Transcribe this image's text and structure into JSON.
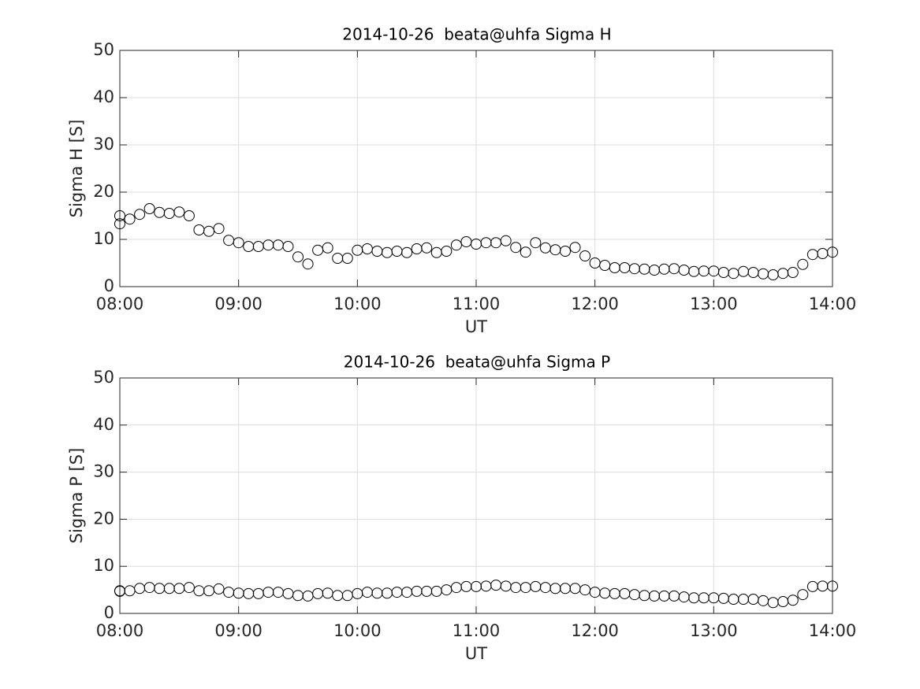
{
  "chart_data": [
    {
      "type": "line",
      "title": "2014-10-26  beata@uhfa Sigma H",
      "xlabel": "UT",
      "ylabel": "Sigma H [S]",
      "x": [
        "08:00",
        "08:00",
        "08:05",
        "08:10",
        "08:15",
        "08:20",
        "08:25",
        "08:30",
        "08:35",
        "08:40",
        "08:45",
        "08:50",
        "08:55",
        "09:00",
        "09:05",
        "09:10",
        "09:15",
        "09:20",
        "09:25",
        "09:30",
        "09:35",
        "09:40",
        "09:45",
        "09:50",
        "09:55",
        "10:00",
        "10:05",
        "10:10",
        "10:15",
        "10:20",
        "10:25",
        "10:30",
        "10:35",
        "10:40",
        "10:45",
        "10:50",
        "10:55",
        "11:00",
        "11:05",
        "11:10",
        "11:15",
        "11:20",
        "11:25",
        "11:30",
        "11:35",
        "11:40",
        "11:45",
        "11:50",
        "11:55",
        "12:00",
        "12:05",
        "12:10",
        "12:15",
        "12:20",
        "12:25",
        "12:30",
        "12:35",
        "12:40",
        "12:45",
        "12:50",
        "12:55",
        "13:00",
        "13:05",
        "13:10",
        "13:15",
        "13:20",
        "13:25",
        "13:30",
        "13:35",
        "13:40",
        "13:45",
        "13:50",
        "13:55",
        "14:00"
      ],
      "values": [
        15.0,
        13.3,
        14.3,
        15.3,
        16.5,
        15.7,
        15.5,
        15.8,
        15.0,
        12.0,
        11.7,
        12.3,
        9.8,
        9.3,
        8.5,
        8.5,
        8.8,
        8.8,
        8.5,
        6.3,
        4.8,
        7.7,
        8.2,
        6.0,
        6.0,
        7.7,
        8.0,
        7.5,
        7.2,
        7.5,
        7.2,
        8.0,
        8.2,
        7.2,
        7.5,
        8.8,
        9.5,
        9.0,
        9.3,
        9.3,
        9.7,
        8.3,
        7.3,
        9.3,
        8.2,
        7.8,
        7.5,
        8.3,
        6.5,
        5.0,
        4.5,
        4.0,
        4.0,
        3.8,
        3.7,
        3.5,
        3.7,
        3.8,
        3.5,
        3.2,
        3.3,
        3.3,
        3.0,
        2.8,
        3.2,
        3.0,
        2.7,
        2.5,
        2.8,
        3.0,
        4.7,
        6.8,
        7.0,
        7.3
      ],
      "color": "#000000",
      "marker": "circle",
      "xlim": [
        "08:00",
        "14:00"
      ],
      "xticks": [
        "08:00",
        "09:00",
        "10:00",
        "11:00",
        "12:00",
        "13:00",
        "14:00"
      ],
      "ylim": [
        0,
        50
      ],
      "yticks": [
        0,
        10,
        20,
        30,
        40,
        50
      ],
      "grid": true
    },
    {
      "type": "line",
      "title": "2014-10-26  beata@uhfa Sigma P",
      "xlabel": "UT",
      "ylabel": "Sigma P [S]",
      "x": [
        "08:00",
        "08:00",
        "08:05",
        "08:10",
        "08:15",
        "08:20",
        "08:25",
        "08:30",
        "08:35",
        "08:40",
        "08:45",
        "08:50",
        "08:55",
        "09:00",
        "09:05",
        "09:10",
        "09:15",
        "09:20",
        "09:25",
        "09:30",
        "09:35",
        "09:40",
        "09:45",
        "09:50",
        "09:55",
        "10:00",
        "10:05",
        "10:10",
        "10:15",
        "10:20",
        "10:25",
        "10:30",
        "10:35",
        "10:40",
        "10:45",
        "10:50",
        "10:55",
        "11:00",
        "11:05",
        "11:10",
        "11:15",
        "11:20",
        "11:25",
        "11:30",
        "11:35",
        "11:40",
        "11:45",
        "11:50",
        "11:55",
        "12:00",
        "12:05",
        "12:10",
        "12:15",
        "12:20",
        "12:25",
        "12:30",
        "12:35",
        "12:40",
        "12:45",
        "12:50",
        "12:55",
        "13:00",
        "13:05",
        "13:10",
        "13:15",
        "13:20",
        "13:25",
        "13:30",
        "13:35",
        "13:40",
        "13:45",
        "13:50",
        "13:55",
        "14:00"
      ],
      "values": [
        4.7,
        4.8,
        4.8,
        5.3,
        5.5,
        5.3,
        5.3,
        5.3,
        5.5,
        4.8,
        4.8,
        5.2,
        4.5,
        4.3,
        4.2,
        4.2,
        4.5,
        4.5,
        4.2,
        3.8,
        3.7,
        4.2,
        4.3,
        3.8,
        3.8,
        4.2,
        4.5,
        4.3,
        4.3,
        4.5,
        4.5,
        4.7,
        4.7,
        4.7,
        5.0,
        5.5,
        5.7,
        5.7,
        5.8,
        6.0,
        5.8,
        5.5,
        5.5,
        5.7,
        5.5,
        5.3,
        5.3,
        5.3,
        5.0,
        4.5,
        4.3,
        4.2,
        4.2,
        4.0,
        3.8,
        3.7,
        3.7,
        3.7,
        3.5,
        3.3,
        3.3,
        3.3,
        3.2,
        3.0,
        3.0,
        3.0,
        2.7,
        2.3,
        2.5,
        2.8,
        4.0,
        5.7,
        5.8,
        5.8
      ],
      "color": "#000000",
      "marker": "circle",
      "xlim": [
        "08:00",
        "14:00"
      ],
      "xticks": [
        "08:00",
        "09:00",
        "10:00",
        "11:00",
        "12:00",
        "13:00",
        "14:00"
      ],
      "ylim": [
        0,
        50
      ],
      "yticks": [
        0,
        10,
        20,
        30,
        40,
        50
      ],
      "grid": true
    }
  ]
}
